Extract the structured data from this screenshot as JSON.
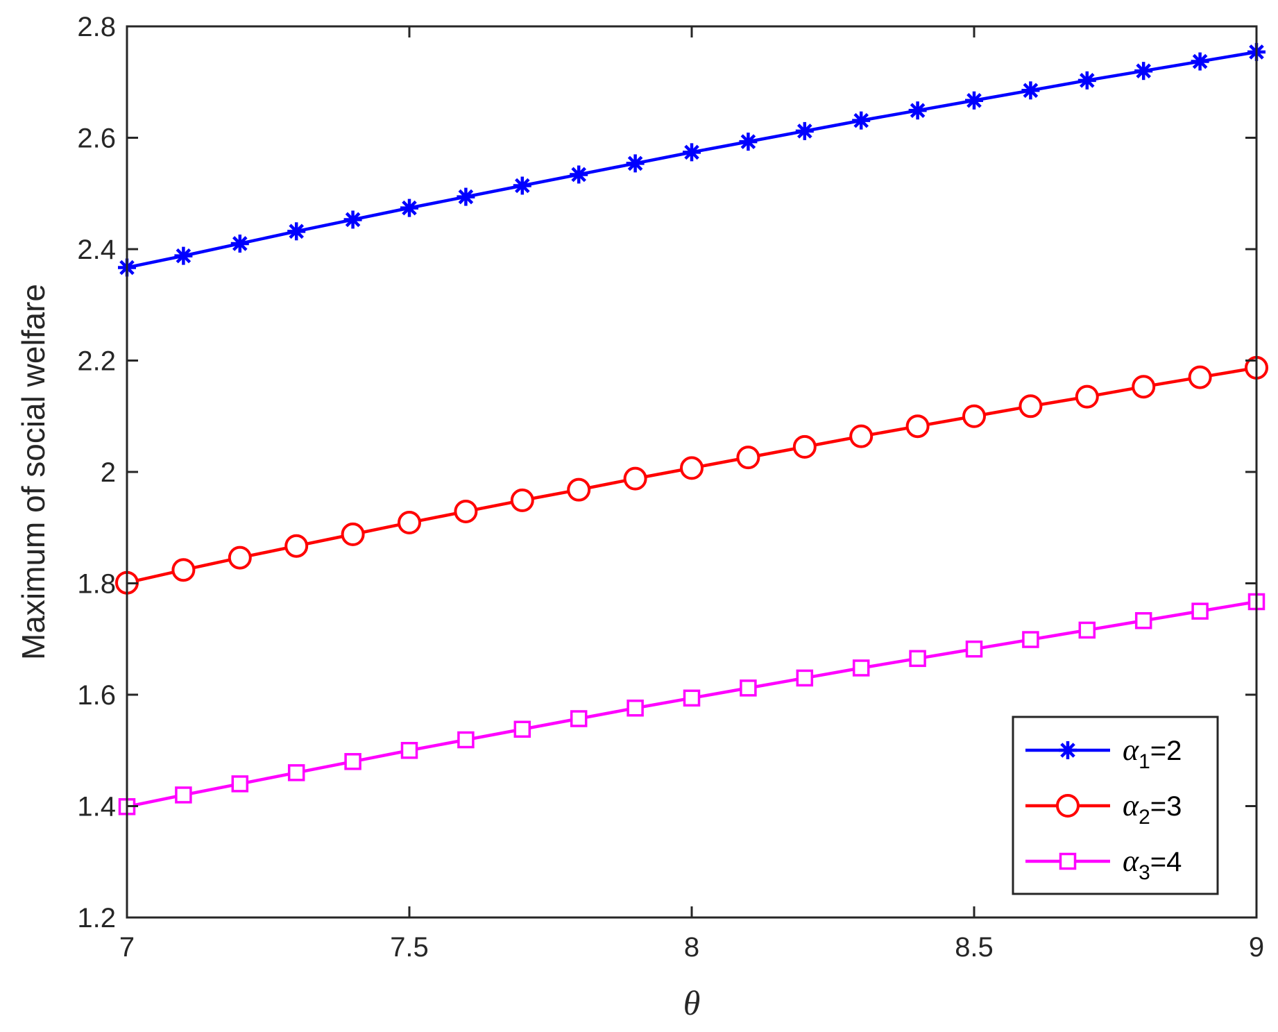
{
  "chart_data": {
    "type": "line",
    "title": "",
    "xlabel": "θ",
    "ylabel": "Maximum of social welfare",
    "xlim": [
      7,
      9
    ],
    "ylim": [
      1.2,
      2.8
    ],
    "xticks": [
      "7",
      "7.5",
      "8",
      "8.5",
      "9"
    ],
    "yticks": [
      "1.2",
      "1.4",
      "1.6",
      "1.8",
      "2",
      "2.2",
      "2.4",
      "2.6",
      "2.8"
    ],
    "grid": false,
    "legend_position": "bottom-right",
    "x": [
      7.0,
      7.1,
      7.2,
      7.3,
      7.4,
      7.5,
      7.6,
      7.7,
      7.8,
      7.9,
      8.0,
      8.1,
      8.2,
      8.3,
      8.4,
      8.5,
      8.6,
      8.7,
      8.8,
      8.9,
      9.0
    ],
    "series": [
      {
        "legend": {
          "symbol": "α",
          "sub": "1",
          "suffix": "=2"
        },
        "color": "#0000ff",
        "marker": "asterisk",
        "values": [
          2.367,
          2.388,
          2.41,
          2.432,
          2.453,
          2.474,
          2.494,
          2.514,
          2.534,
          2.554,
          2.574,
          2.593,
          2.612,
          2.631,
          2.649,
          2.667,
          2.685,
          2.703,
          2.72,
          2.737,
          2.754
        ]
      },
      {
        "legend": {
          "symbol": "α",
          "sub": "2",
          "suffix": "=3"
        },
        "color": "#ff0000",
        "marker": "circle",
        "values": [
          1.801,
          1.824,
          1.846,
          1.867,
          1.888,
          1.909,
          1.929,
          1.949,
          1.968,
          1.988,
          2.007,
          2.026,
          2.045,
          2.064,
          2.082,
          2.1,
          2.118,
          2.135,
          2.153,
          2.17,
          2.187
        ]
      },
      {
        "legend": {
          "symbol": "α",
          "sub": "3",
          "suffix": "=4"
        },
        "color": "#ff00ff",
        "marker": "square",
        "values": [
          1.399,
          1.42,
          1.44,
          1.46,
          1.48,
          1.5,
          1.519,
          1.538,
          1.557,
          1.576,
          1.594,
          1.612,
          1.63,
          1.648,
          1.665,
          1.682,
          1.699,
          1.716,
          1.733,
          1.75,
          1.767
        ]
      }
    ]
  }
}
